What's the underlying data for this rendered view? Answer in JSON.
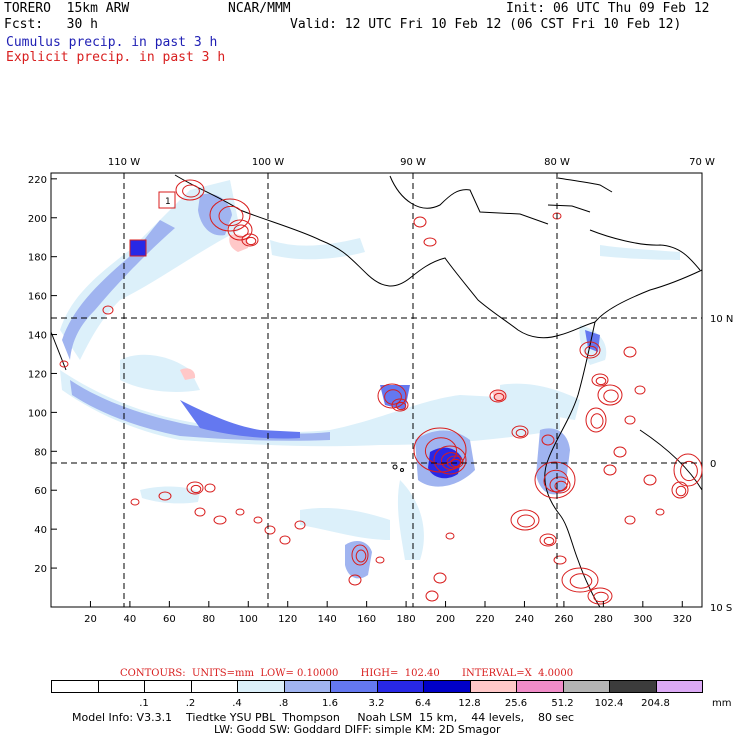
{
  "header": {
    "model": "TORERO  15km ARW",
    "org": "NCAR/MMM",
    "init": "Init: 06 UTC Thu 09 Feb 12",
    "fcst": "Fcst:   30 h",
    "valid": "Valid: 12 UTC Fri 10 Feb 12 (06 CST Fri 10 Feb 12)",
    "field_cumulus": "Cumulus precip. in past 3 h",
    "field_explicit": "Explicit precip. in past 3 h"
  },
  "map": {
    "lon_labels": [
      "110 W",
      "100 W",
      "90 W",
      "80 W",
      "70 W"
    ],
    "lat_labels_right": [
      "10 N",
      "0",
      "10 S"
    ],
    "y_ticks": [
      "220",
      "200",
      "180",
      "160",
      "140",
      "120",
      "100",
      "80",
      "60",
      "40",
      "20"
    ],
    "x_ticks": [
      "20",
      "40",
      "60",
      "80",
      "100",
      "120",
      "140",
      "160",
      "180",
      "200",
      "220",
      "240",
      "260",
      "280",
      "300",
      "320"
    ],
    "markers": [
      "1"
    ]
  },
  "colorbar": {
    "contours_line": "CONTOURS:  UNITS=mm  LOW= 0.10000       HIGH=  102.40       INTERVAL=X  4.0000",
    "units": "mm",
    "labels": [
      ".1",
      ".2",
      ".4",
      ".8",
      "1.6",
      "3.2",
      "6.4",
      "12.8",
      "25.6",
      "51.2",
      "102.4",
      "204.8"
    ],
    "colors": [
      "#ffffff",
      "#ffffff",
      "#ffffff",
      "#ffffff",
      "#dcf0fa",
      "#a0b4f0",
      "#6478f0",
      "#2828e6",
      "#0000c8",
      "#ffc8c8",
      "#f08cc8",
      "#b4b4b4",
      "#3c3c3c",
      "#dcaaf5"
    ]
  },
  "footer": {
    "line1": "Model Info: V3.3.1    Tiedtke YSU PBL  Thompson     Noah LSM  15 km,    44 levels,    80 sec",
    "line2": "LW: Godd SW: Goddard DIFF: simple KM: 2D Smagor"
  }
}
